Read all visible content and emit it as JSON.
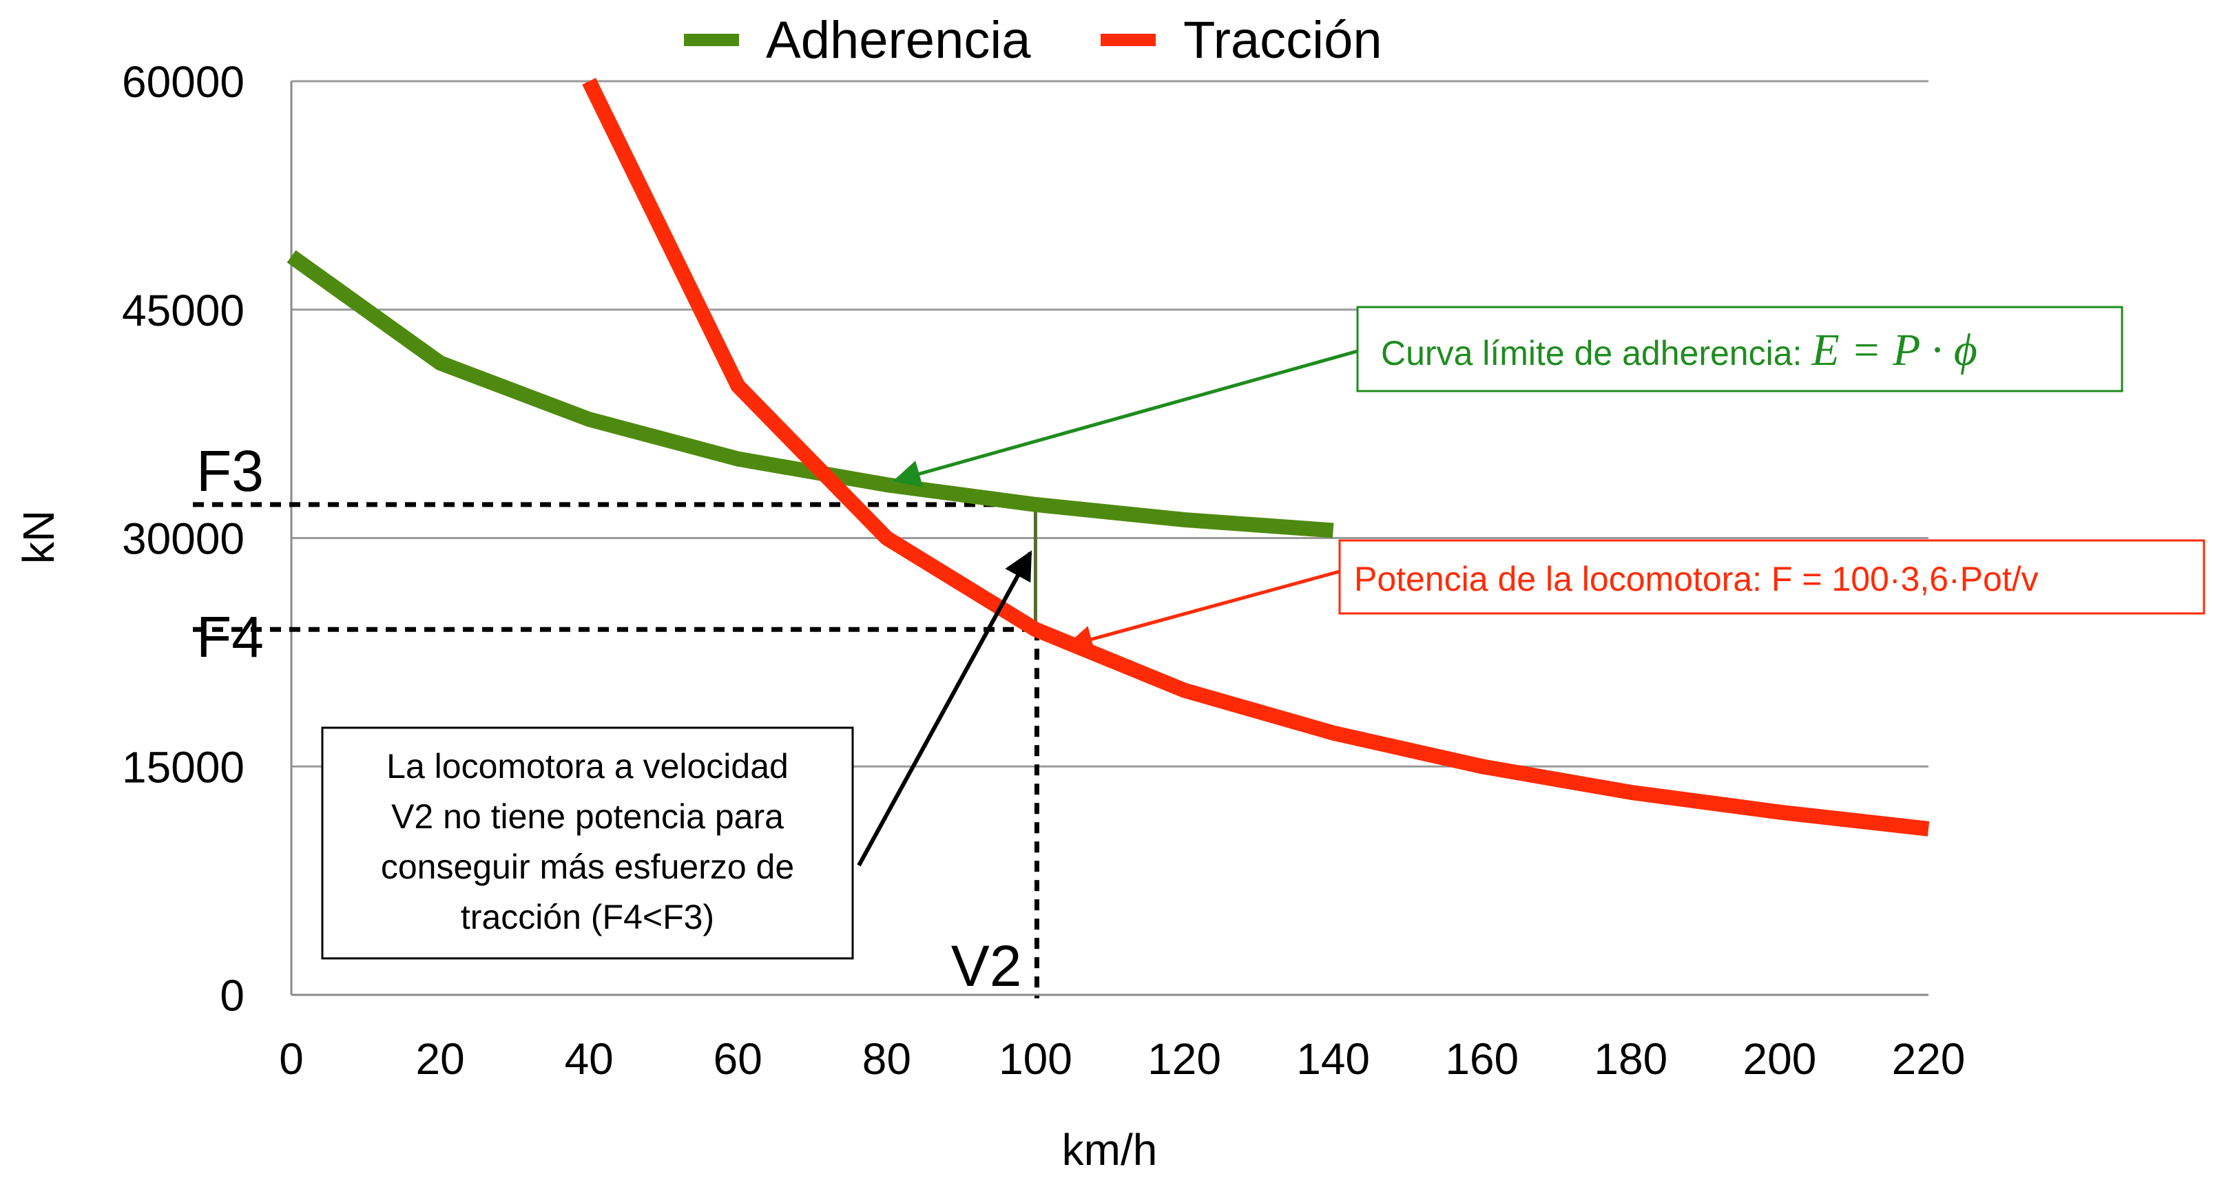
{
  "chart_data": {
    "type": "line",
    "title": "",
    "xlabel": "km/h",
    "ylabel": "kN",
    "xlim": [
      0,
      220
    ],
    "ylim": [
      0,
      60000
    ],
    "x_ticks": [
      "0",
      "20",
      "40",
      "60",
      "80",
      "100",
      "120",
      "140",
      "160",
      "180",
      "200",
      "220"
    ],
    "y_ticks": [
      "0",
      "15000",
      "30000",
      "45000",
      "60000"
    ],
    "grid": true,
    "legend": "top-center",
    "series": [
      {
        "name": "Adherencia",
        "color": "#4f8a10",
        "x": [
          0,
          20,
          40,
          60,
          80,
          100,
          120,
          140
        ],
        "values": [
          48500,
          41500,
          37800,
          35200,
          33500,
          32200,
          31200,
          30500
        ]
      },
      {
        "name": "Tracción",
        "color": "#ff2b06",
        "x": [
          40,
          60,
          80,
          100,
          120,
          140,
          160,
          180,
          200,
          220
        ],
        "values": [
          60000,
          40000,
          30000,
          24000,
          20000,
          17200,
          15000,
          13300,
          12000,
          10900
        ]
      }
    ],
    "markers": {
      "F3": {
        "label": "F3",
        "value": 32200
      },
      "F4": {
        "label": "F4",
        "value": 24000
      },
      "V2": {
        "label": "V2",
        "value": 100
      }
    },
    "annotations": {
      "adherence": {
        "label": "Curva límite de adherencia: ",
        "formula": "E = P · ϕ",
        "color": "#1e8c1e"
      },
      "power": {
        "label": "Potencia de la locomotora: F = 100·3,6·Pot/v",
        "color": "#ff2b06"
      },
      "note": {
        "lines": [
          "La locomotora a velocidad",
          "V2 no tiene potencia para",
          "conseguir más esfuerzo de",
          "tracción (F4<F3)"
        ]
      }
    }
  }
}
